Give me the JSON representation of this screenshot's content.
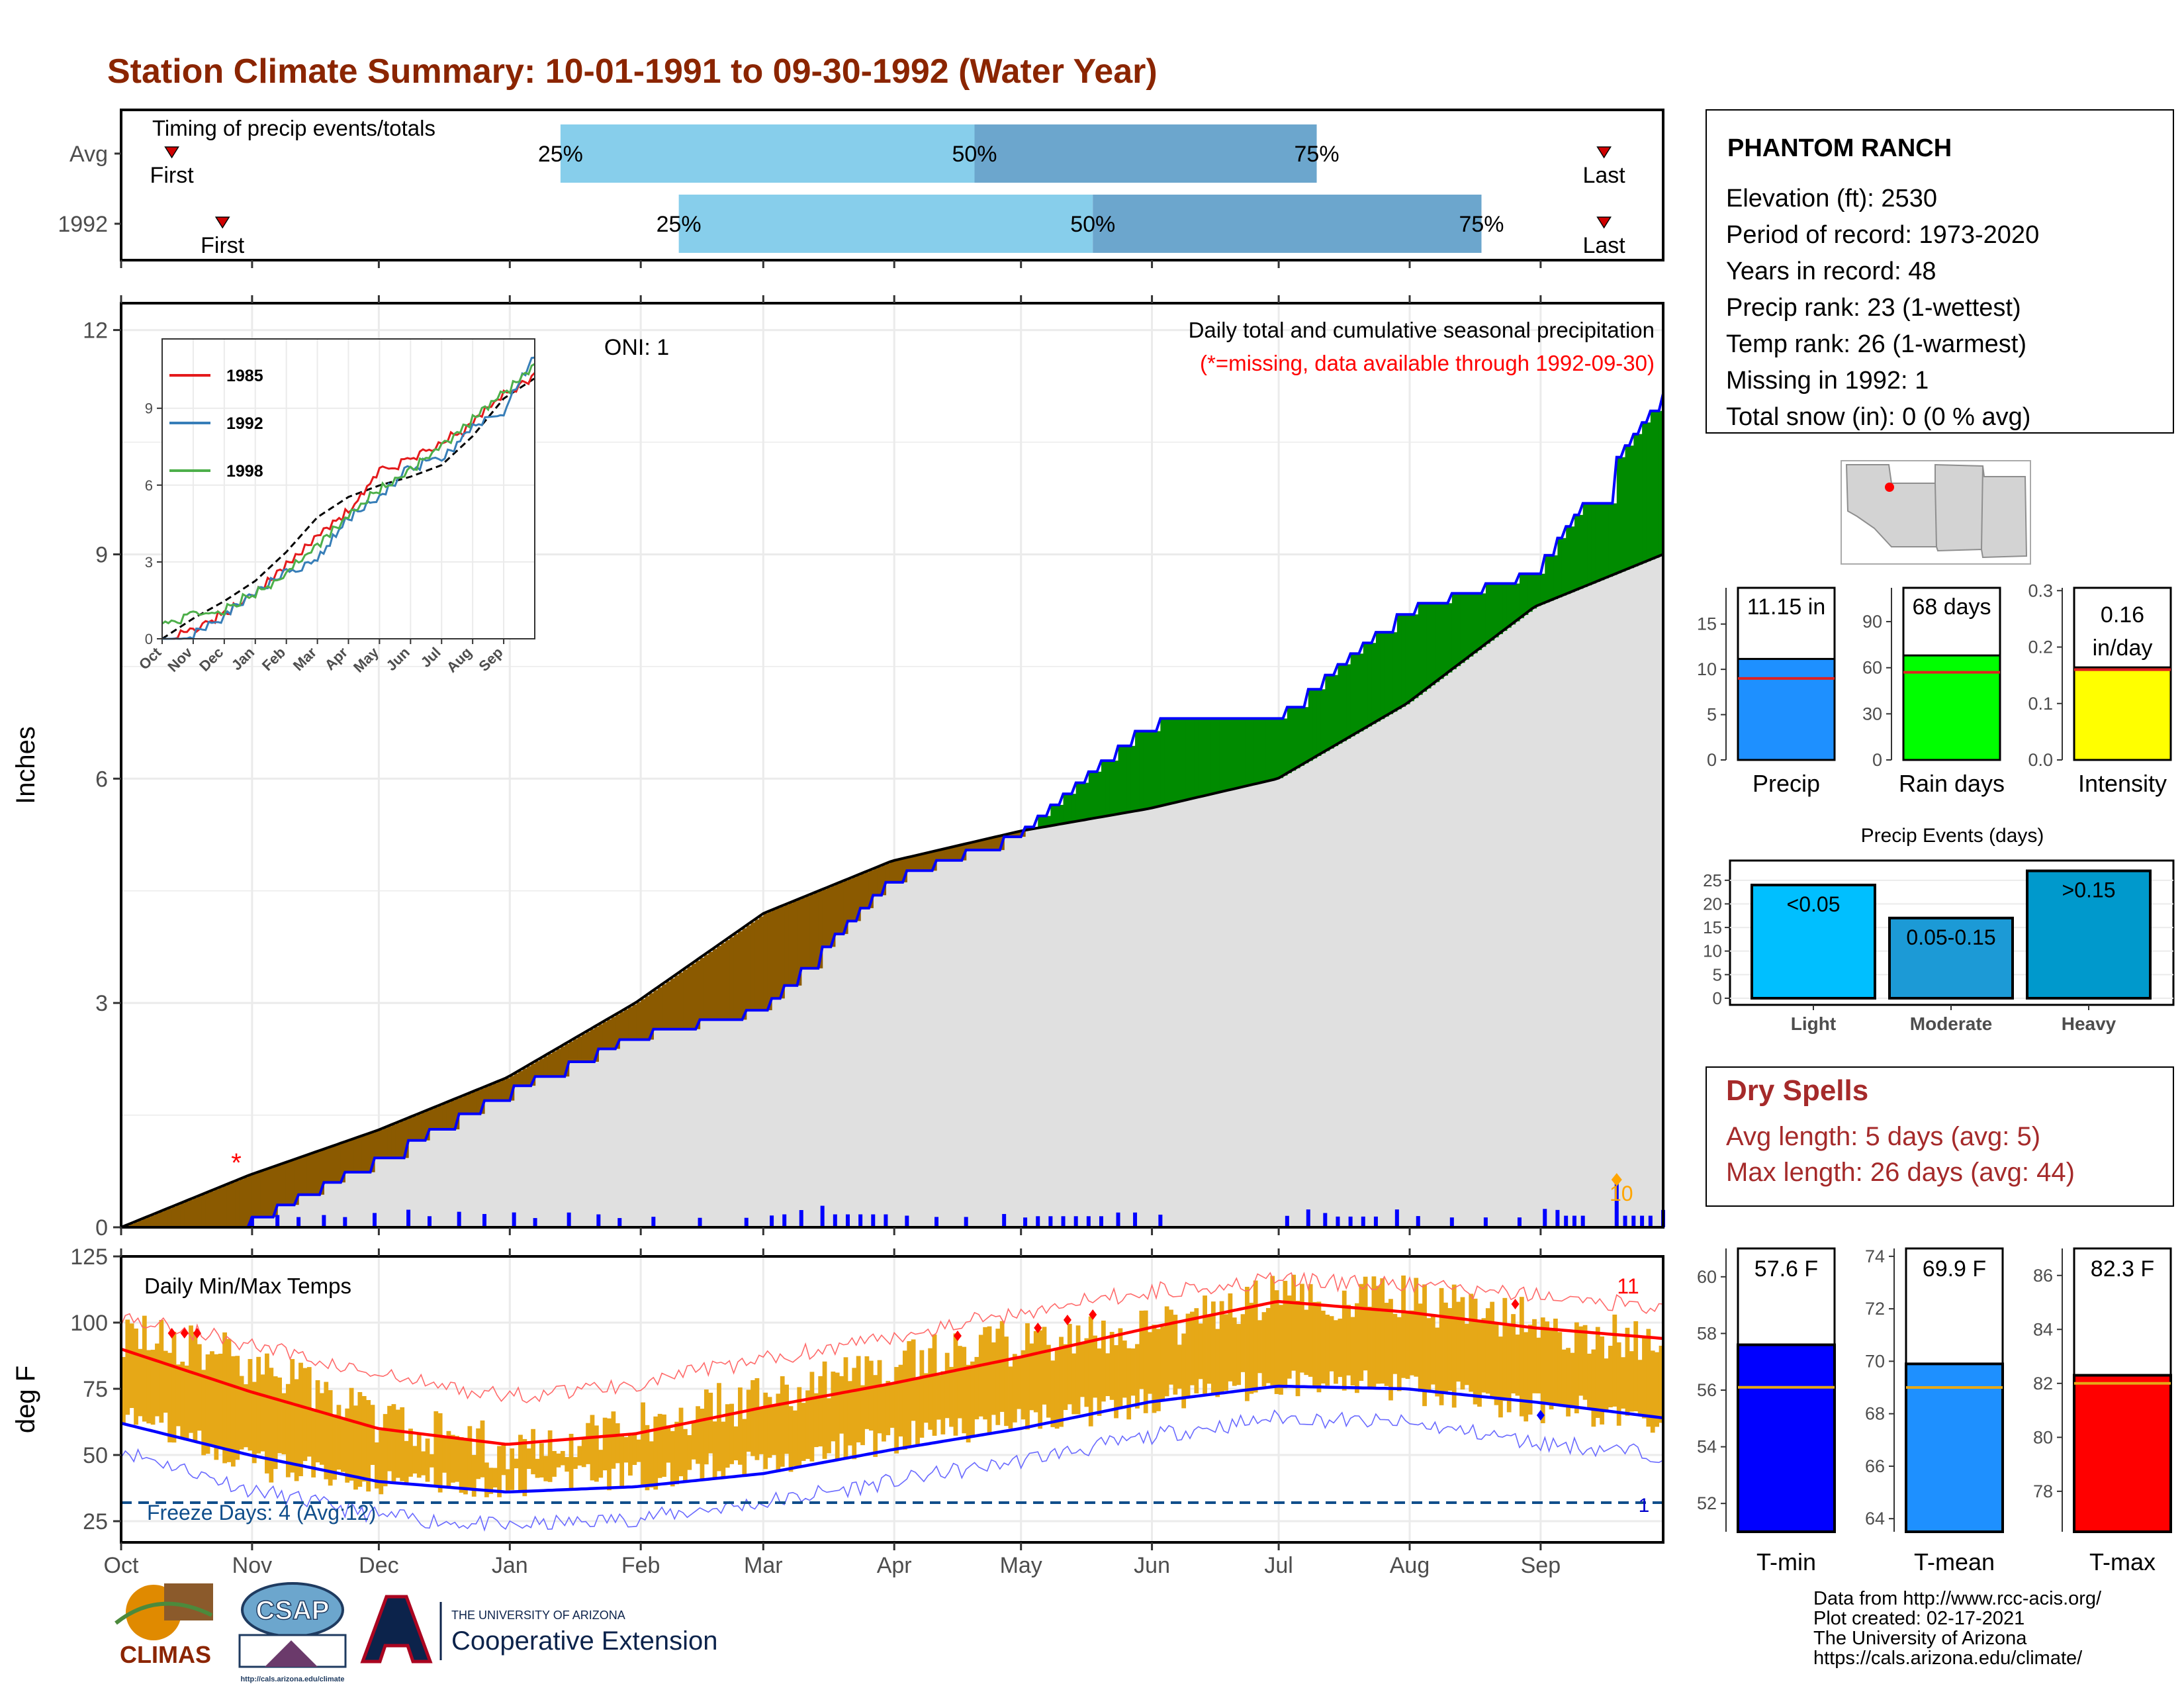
{
  "title": "Station Climate Summary: 10-01-1991 to 09-30-1992 (Water Year)",
  "colors": {
    "title": "#8B2500",
    "light_blue": "#87CEEB",
    "mid_blue": "#6CA6CD",
    "green": "#008B00",
    "brown": "#8B5A00",
    "grey_fill": "#E0E0E0",
    "event_blue": "#0000FF",
    "orange": "#FFA500",
    "red": "#FF0000",
    "temp_band": "#E6A817",
    "precip_bar": "#1E90FF",
    "rain_bar": "#00FF00",
    "intensity_bar": "#FFFF00",
    "light_bar": "#00BFFF",
    "moderate_bar": "#1C9AD6",
    "heavy_bar": "#0099CC",
    "tmin_bar": "#0000FF",
    "tmean_bar": "#1E90FF",
    "tmax_bar": "#FF0000",
    "dry_spell_text": "#A52A2A"
  },
  "timing": {
    "title": "Timing of precip events/totals",
    "rows": [
      {
        "label": "Avg",
        "first_day": 12,
        "p25_day": 104,
        "p50_day": 202,
        "p75_day": 283,
        "last_day": 351,
        "first_label": "First",
        "last_label": "Last",
        "p25_label": "25%",
        "p50_label": "50%",
        "p75_label": "75%"
      },
      {
        "label": "1992",
        "first_day": 24,
        "p25_day": 132,
        "p50_day": 230,
        "p75_day": 322,
        "last_day": 351,
        "first_label": "First",
        "last_label": "Last",
        "p25_label": "25%",
        "p50_label": "50%",
        "p75_label": "75%"
      }
    ]
  },
  "precip_panel": {
    "ylabel": "Inches",
    "oni_label": "ONI: 1",
    "caption": "Daily total and cumulative seasonal precipitation",
    "missing_note": "(*=missing, data available through 1992-09-30)",
    "yticks": [
      "0",
      "3",
      "6",
      "9",
      "12"
    ],
    "missing_marker": "*",
    "count_label": "10"
  },
  "inset": {
    "legend": [
      {
        "name": "1985",
        "color": "#E41A1C"
      },
      {
        "name": "1992",
        "color": "#377EB8"
      },
      {
        "name": "1998",
        "color": "#4DAF4A"
      }
    ],
    "yticks": [
      "0",
      "3",
      "6",
      "9"
    ],
    "xticks": [
      "Oct",
      "Nov",
      "Dec",
      "Jan",
      "Feb",
      "Mar",
      "Apr",
      "May",
      "Jun",
      "Jul",
      "Aug",
      "Sep"
    ]
  },
  "temp_panel": {
    "title": "Daily Min/Max Temps",
    "ylabel": "deg F",
    "yticks": [
      "25",
      "50",
      "75",
      "100",
      "125"
    ],
    "freeze_label": "Freeze Days: 4 (Avg:12)",
    "record_high_count": "11",
    "record_low_count": "1"
  },
  "months": [
    "Oct",
    "Nov",
    "Dec",
    "Jan",
    "Feb",
    "Mar",
    "Apr",
    "May",
    "Jun",
    "Jul",
    "Aug",
    "Sep"
  ],
  "station": {
    "name": "PHANTOM RANCH",
    "lines": [
      "Elevation (ft): 2530",
      "Period of record: 1973-2020",
      "Years in record: 48",
      "Precip rank: 23 (1-wettest)",
      "Temp rank: 26 (1-warmest)",
      "Missing in 1992: 1",
      "Total snow (in): 0 (0 % avg)"
    ]
  },
  "summary_bars": [
    {
      "label": "Precip",
      "value_label": "11.15 in",
      "value": 11.15,
      "avg": 9.0,
      "ymax": 19,
      "yticks": [
        "0",
        "5",
        "10",
        "15"
      ],
      "tickvals": [
        0,
        5,
        10,
        15
      ],
      "color": "#1E90FF"
    },
    {
      "label": "Rain days",
      "value_label": "68 days",
      "value": 68,
      "avg": 57,
      "ymax": 112,
      "yticks": [
        "0",
        "30",
        "60",
        "90"
      ],
      "tickvals": [
        0,
        30,
        60,
        90
      ],
      "color": "#00FF00"
    },
    {
      "label": "Intensity",
      "value_label1": "0.16",
      "value_label2": "in/day",
      "value": 0.164,
      "avg": 0.16,
      "ymax": 0.305,
      "yticks": [
        "0.0",
        "0.1",
        "0.2",
        "0.3"
      ],
      "tickvals": [
        0,
        0.1,
        0.2,
        0.3
      ],
      "color": "#FFFF00"
    }
  ],
  "precip_events": {
    "title": "Precip Events (days)",
    "yticks": [
      "0",
      "5",
      "10",
      "15",
      "20",
      "25"
    ],
    "categories": [
      "Light",
      "Moderate",
      "Heavy"
    ],
    "bar_labels": [
      "<0.05",
      "0.05-0.15",
      ">0.15"
    ],
    "values": [
      24,
      17,
      27
    ]
  },
  "dry_spells": {
    "title": "Dry Spells",
    "avg_length": "Avg length: 5 days (avg: 5)",
    "max_length": "Max length: 26 days (avg: 44)"
  },
  "temp_bars": [
    {
      "label": "T-min",
      "value_label": "57.6 F",
      "value": 57.6,
      "avg": 56.1,
      "ymin": 51,
      "ymax": 61,
      "yticks": [
        "52",
        "54",
        "56",
        "58",
        "60"
      ],
      "tickvals": [
        52,
        54,
        56,
        58,
        60
      ],
      "color": "#0000FF"
    },
    {
      "label": "T-mean",
      "value_label": "69.9 F",
      "value": 69.9,
      "avg": 69.0,
      "ymin": 63.5,
      "ymax": 74.3,
      "yticks": [
        "64",
        "66",
        "68",
        "70",
        "72",
        "74"
      ],
      "tickvals": [
        64,
        66,
        68,
        70,
        72,
        74
      ],
      "color": "#1E90FF"
    },
    {
      "label": "T-max",
      "value_label": "82.3 F",
      "value": 82.3,
      "avg": 82.0,
      "ymin": 76.5,
      "ymax": 87,
      "yticks": [
        "78",
        "80",
        "82",
        "84",
        "86"
      ],
      "tickvals": [
        78,
        80,
        82,
        84,
        86
      ],
      "color": "#FF0000"
    }
  ],
  "footer": {
    "lines": [
      "Data from http://www.rcc-acis.org/",
      "Plot created: 02-17-2021",
      "The University of Arizona",
      "https://cals.arizona.edu/climate/"
    ],
    "climas": "CLIMAS",
    "csap": "CSAP",
    "csap_url": "http://cals.arizona.edu/climate",
    "ua_small": "THE UNIVERSITY OF ARIZONA",
    "ua_big": "Cooperative Extension"
  },
  "chart_data": [
    {
      "type": "area",
      "title": "Daily total and cumulative seasonal precipitation",
      "ylabel": "Inches",
      "ylim": [
        0,
        12.2
      ],
      "x": [
        "Oct",
        "Nov",
        "Dec",
        "Jan",
        "Feb",
        "Mar",
        "Apr",
        "May",
        "Jun",
        "Jul",
        "Aug",
        "Sep",
        "Sep 30"
      ],
      "series": [
        {
          "name": "1992",
          "values": [
            0,
            0.12,
            0.95,
            1.85,
            2.6,
            2.95,
            4.7,
            5.3,
            6.8,
            6.85,
            8.3,
            8.8,
            11.15
          ]
        },
        {
          "name": "Avg",
          "values": [
            0,
            0.7,
            1.3,
            2.0,
            3.0,
            4.2,
            4.9,
            5.3,
            5.6,
            6.0,
            7.0,
            8.3,
            9.0
          ]
        }
      ]
    },
    {
      "type": "line",
      "title": "",
      "ylim": [
        0,
        11.5
      ],
      "x": [
        "Oct",
        "Nov",
        "Dec",
        "Jan",
        "Feb",
        "Mar",
        "Apr",
        "May",
        "Jun",
        "Jul",
        "Aug",
        "Sep",
        "Sep 30"
      ],
      "series": [
        {
          "name": "1985",
          "values": [
            0,
            0.3,
            1.0,
            1.8,
            2.9,
            4.0,
            5.0,
            6.5,
            7.0,
            7.6,
            8.4,
            9.5,
            10.3
          ]
        },
        {
          "name": "1992",
          "values": [
            0,
            0.1,
            0.9,
            1.8,
            2.6,
            3.0,
            4.7,
            5.5,
            6.8,
            6.9,
            8.3,
            8.8,
            11.15
          ]
        },
        {
          "name": "1998",
          "values": [
            0.7,
            0.9,
            1.1,
            1.8,
            2.5,
            3.7,
            4.8,
            5.8,
            6.6,
            7.5,
            8.6,
            9.6,
            10.7
          ]
        }
      ]
    },
    {
      "type": "line",
      "title": "Daily Min/Max Temps",
      "ylabel": "deg F",
      "ylim": [
        17,
        125
      ],
      "x": [
        "Oct",
        "Nov",
        "Dec",
        "Jan",
        "Feb",
        "Mar",
        "Apr",
        "May",
        "Jun",
        "Jul",
        "Aug",
        "Sep",
        "Sep 30"
      ],
      "series": [
        {
          "name": "avg max",
          "values": [
            90,
            74,
            60,
            54,
            58,
            68,
            77,
            87,
            98,
            108,
            104,
            98,
            94
          ]
        },
        {
          "name": "avg min",
          "values": [
            62,
            50,
            40,
            36,
            38,
            43,
            52,
            60,
            70,
            76,
            75,
            70,
            64
          ]
        },
        {
          "name": "record max",
          "values": [
            102,
            92,
            80,
            72,
            77,
            86,
            95,
            104,
            112,
            116,
            114,
            110,
            106
          ]
        },
        {
          "name": "record min",
          "values": [
            52,
            37,
            27,
            23,
            26,
            32,
            40,
            48,
            57,
            64,
            62,
            55,
            50
          ]
        },
        {
          "name": "daily max",
          "values": [
            96,
            85,
            63,
            52,
            62,
            72,
            85,
            93,
            97,
            110,
            109,
            100,
            91
          ]
        },
        {
          "name": "daily min",
          "values": [
            67,
            46,
            41,
            39,
            42,
            48,
            56,
            63,
            70,
            78,
            75,
            68,
            64
          ]
        }
      ]
    }
  ]
}
